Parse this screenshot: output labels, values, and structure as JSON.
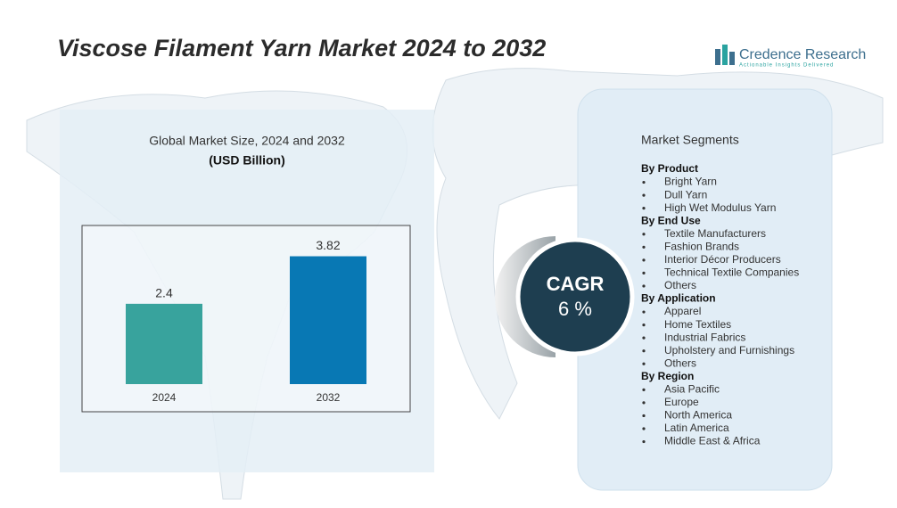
{
  "title": "Viscose Filament Yarn Market 2024 to 2032",
  "logo": {
    "name": "Credence Research",
    "tagline": "Actionable Insights Delivered"
  },
  "chart_data": {
    "type": "bar",
    "title": "Global Market Size, 2024 and 2032",
    "subtitle": "(USD Billion)",
    "categories": [
      "2024",
      "2032"
    ],
    "values": [
      2.4,
      3.82
    ],
    "colors": [
      "#38a39d",
      "#0878b4"
    ],
    "ylim": [
      0,
      4.5
    ]
  },
  "cagr": {
    "label": "CAGR",
    "value": "6 %"
  },
  "segments": {
    "title": "Market Segments",
    "groups": [
      {
        "name": "By Product",
        "items": [
          "Bright Yarn",
          "Dull Yarn",
          "High Wet Modulus Yarn"
        ]
      },
      {
        "name": "By End Use",
        "items": [
          "Textile Manufacturers",
          "Fashion Brands",
          "Interior Décor Producers",
          "Technical Textile Companies",
          "Others"
        ]
      },
      {
        "name": "By Application",
        "items": [
          "Apparel",
          "Home Textiles",
          "Industrial Fabrics",
          "Upholstery and Furnishings",
          "Others"
        ]
      },
      {
        "name": "By Region",
        "items": [
          "Asia Pacific",
          "Europe",
          "North America",
          "Latin America",
          "Middle East & Africa"
        ]
      }
    ]
  }
}
